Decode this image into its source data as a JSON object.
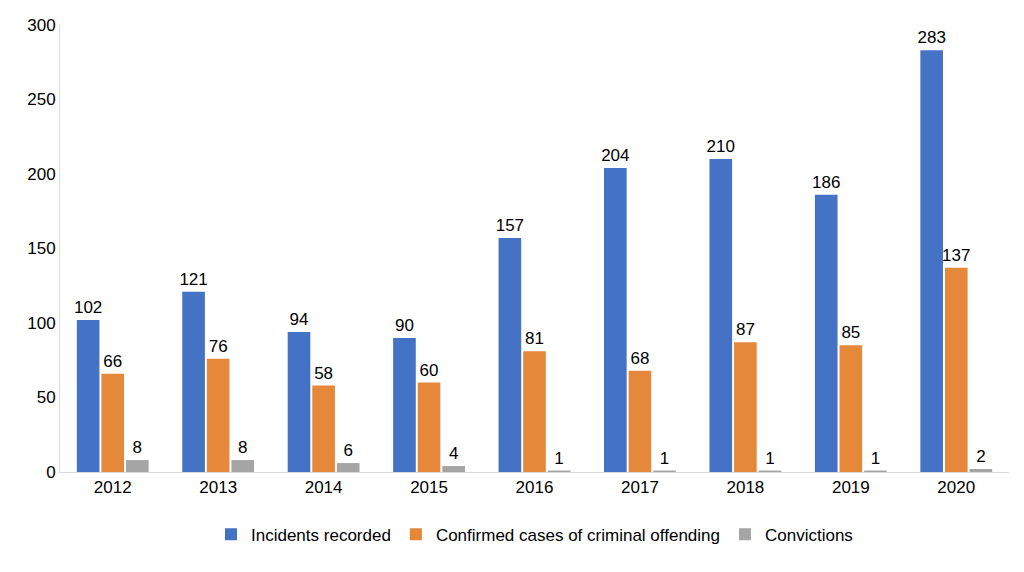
{
  "chart_data": {
    "type": "bar",
    "categories": [
      "2012",
      "2013",
      "2014",
      "2015",
      "2016",
      "2017",
      "2018",
      "2019",
      "2020"
    ],
    "series": [
      {
        "name": "Incidents recorded",
        "color": "#4472c4",
        "values": [
          102,
          121,
          94,
          90,
          157,
          204,
          210,
          186,
          283
        ]
      },
      {
        "name": "Confirmed cases of criminal offending",
        "color": "#e5883a",
        "values": [
          66,
          76,
          58,
          60,
          81,
          68,
          87,
          85,
          137
        ]
      },
      {
        "name": "Convictions",
        "color": "#a5a5a5",
        "values": [
          8,
          8,
          6,
          4,
          1,
          1,
          1,
          1,
          2
        ]
      }
    ],
    "ylim": [
      0,
      300
    ],
    "yticks": [
      0,
      50,
      100,
      150,
      200,
      250,
      300
    ],
    "grid": false,
    "data_labels": true,
    "legend": "bottom"
  }
}
